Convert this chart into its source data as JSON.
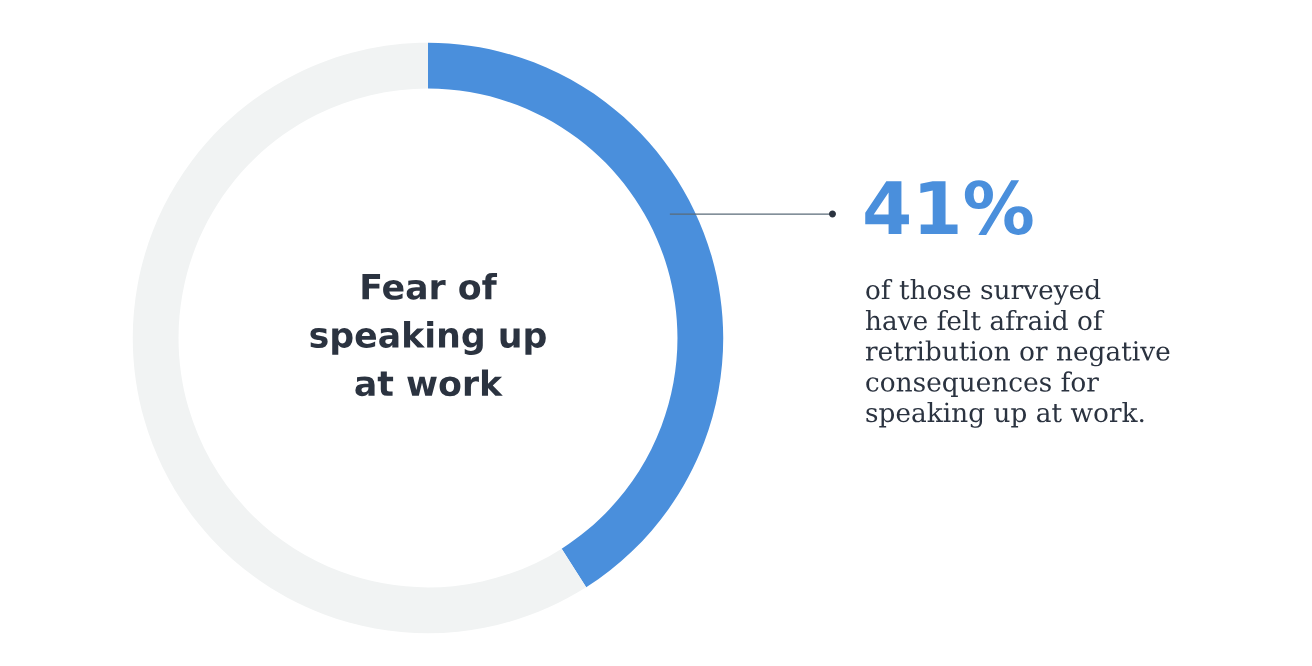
{
  "chart_data": {
    "type": "donut",
    "title": "Fear of\nspeaking up\nat work",
    "categories": [
      null,
      null
    ],
    "values": [
      41,
      59
    ],
    "colors": [
      "#4a8fdc",
      "#f1f3f3"
    ],
    "value_labels": [
      "41%",
      null
    ],
    "annotations": [
      "of those surveyed\nhave felt afraid of\nretribution or negative\nconsequences for\nspeaking up at work."
    ]
  }
}
